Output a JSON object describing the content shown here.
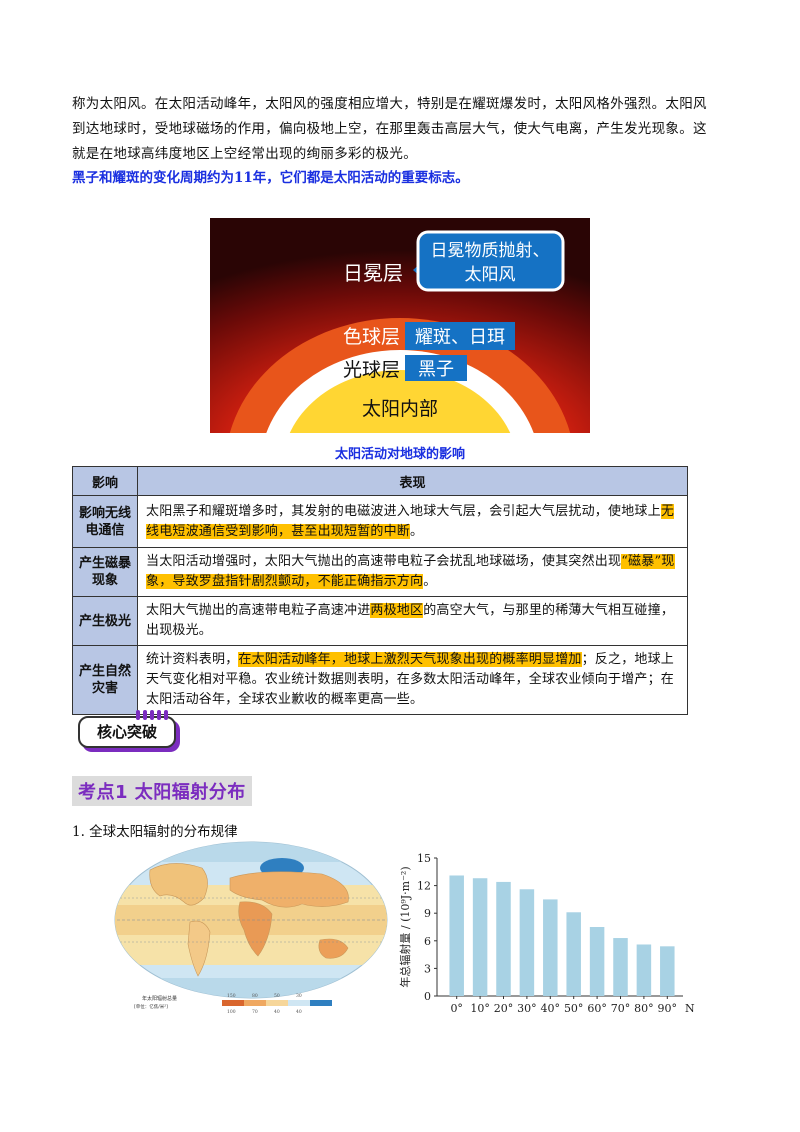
{
  "intro": {
    "line1": "称为太阳风。在太阳活动峰年，太阳风的强度相应增大，特别是在耀斑爆发时，太阳风格外强烈。太阳风",
    "line2": "到达地球时，受地球磁场的作用，偏向极地上空，在那里轰击高层大气，使大气电离，产生发光现象。这",
    "line3": "就是在地球高纬度地区上空经常出现的绚丽多彩的极光。"
  },
  "key_point": "黑子和耀斑的变化周期约为11年，它们都是太阳活动的重要标志。",
  "sun_figure": {
    "corona": "日冕层",
    "corona_tag_line1": "日冕物质抛射、",
    "corona_tag_line2": "太阳风",
    "chromosphere": "色球层",
    "chromosphere_tag": "耀斑、日珥",
    "photosphere": "光球层",
    "photosphere_tag": "黑子",
    "interior": "太阳内部"
  },
  "table": {
    "caption": "太阳活动对地球的影响",
    "col1": "影响",
    "col2": "表现",
    "rows": [
      {
        "head": "影响无线电通信",
        "pre": "太阳黑子和耀斑增多时，其发射的电磁波进入地球大气层，会引起大气层扰动，使地球上",
        "hl": "无线电短波通信受到影响，甚至出现短暂的中断",
        "post": "。"
      },
      {
        "head": "产生磁暴现象",
        "pre": "当太阳活动增强时，太阳大气抛出的高速带电粒子会扰乱地球磁场，使其突然出现",
        "hl": "“磁暴”现象，导致罗盘指针剧烈颤动，不能正确指示方向",
        "post": "。"
      },
      {
        "head": "产生极光",
        "pre": "太阳大气抛出的高速带电粒子高速冲进",
        "hl": "两极地区",
        "post": "的高空大气，与那里的稀薄大气相互碰撞，出现极光。"
      },
      {
        "head": "产生自然灾害",
        "pre": "统计资料表明，",
        "hl": "在太阳活动峰年，地球上激烈天气现象出现的概率明显增加",
        "post": "；反之，地球上天气变化相对平稳。农业统计数据则表明，在多数太阳活动峰年，全球农业倾向于增产；在太阳活动谷年，全球农业歉收的概率更高一些。"
      }
    ]
  },
  "badge": "核心突破",
  "section_title": "考点1  太阳辐射分布",
  "subheading": "1. 全球太阳辐射的分布规律",
  "map_legend": {
    "title_line1": "年太阳辐射总量",
    "title_line2": "[单位：亿焦/米²]",
    "values_top": [
      "150",
      "80",
      "50",
      "30"
    ],
    "values_bottom": [
      "100",
      "70",
      "40",
      "40"
    ]
  },
  "chart_data": {
    "type": "bar",
    "categories": [
      "0°",
      "10°",
      "20°",
      "30°",
      "40°",
      "50°",
      "60°",
      "70°",
      "80°",
      "90°"
    ],
    "values": [
      13.1,
      12.8,
      12.4,
      11.6,
      10.5,
      9.1,
      7.5,
      6.3,
      5.6,
      5.4
    ],
    "ylabel": "年总辐射量 / (10⁹J·m⁻²)",
    "x_end_label": "N",
    "ylim": [
      0,
      15
    ],
    "yticks": [
      "0",
      "3",
      "6",
      "9",
      "12",
      "15"
    ],
    "bar_color": "#a8d2e4"
  }
}
